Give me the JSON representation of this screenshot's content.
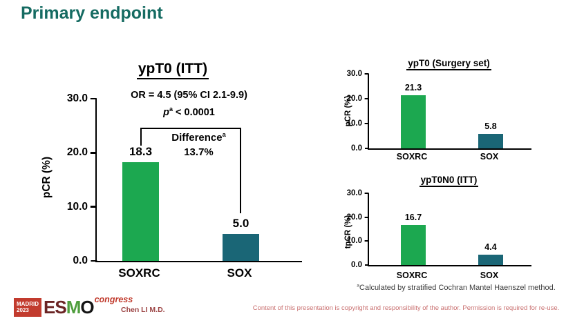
{
  "slide": {
    "title": "Primary endpoint",
    "presenter": "Chen LI M.D.",
    "copyright_notice": "Content of this presentation is copyright and responsibility of the author. Permission is required for re-use.",
    "footnote_sup": "a",
    "footnote_text": "Calculated by stratified Cochran Mantel Haenszel method.",
    "logo": {
      "city": "MADRID",
      "year": "2023",
      "letters": [
        "E",
        "S",
        "M",
        "O"
      ],
      "suffix": "congress"
    }
  },
  "colors": {
    "title_teal": "#156B62",
    "bar_green": "#1CA850",
    "bar_teal": "#1A6676",
    "logo_red": "#C23B2E",
    "presenter_red": "#9C4444",
    "copyright_red": "#C97070"
  },
  "chart_data": [
    {
      "type": "bar",
      "title": "ypT0 (ITT)",
      "ylabel": "pCR (%)",
      "xlabel": "",
      "ylim": [
        0,
        30
      ],
      "yticks": [
        "0.0",
        "10.0",
        "20.0",
        "30.0"
      ],
      "categories": [
        "SOXRC",
        "SOX"
      ],
      "values": [
        18.3,
        5.0
      ],
      "value_labels": [
        "18.3",
        "5.0"
      ],
      "bar_colors": [
        "#1CA850",
        "#1A6676"
      ],
      "grid": "off",
      "annotations": {
        "or_text": "OR = 4.5 (95% CI 2.1-9.9)",
        "p_label": "p",
        "p_sup": "a",
        "p_comparison": "< 0.0001",
        "difference_label": "Difference",
        "difference_sup": "a",
        "difference_value": "13.7%"
      }
    },
    {
      "type": "bar",
      "title": "ypT0 (Surgery set)",
      "ylabel": "pCR (%)",
      "xlabel": "",
      "ylim": [
        0,
        30
      ],
      "yticks": [
        "0.0",
        "10.0",
        "20.0",
        "30.0"
      ],
      "categories": [
        "SOXRC",
        "SOX"
      ],
      "values": [
        21.3,
        5.8
      ],
      "value_labels": [
        "21.3",
        "5.8"
      ],
      "bar_colors": [
        "#1CA850",
        "#1A6676"
      ],
      "grid": "off"
    },
    {
      "type": "bar",
      "title": "ypT0N0 (ITT)",
      "ylabel": "tpCR (%)",
      "xlabel": "",
      "ylim": [
        0,
        30
      ],
      "yticks": [
        "0.0",
        "10.0",
        "20.0",
        "30.0"
      ],
      "categories": [
        "SOXRC",
        "SOX"
      ],
      "values": [
        16.7,
        4.4
      ],
      "value_labels": [
        "16.7",
        "4.4"
      ],
      "bar_colors": [
        "#1CA850",
        "#1A6676"
      ],
      "grid": "off"
    }
  ]
}
